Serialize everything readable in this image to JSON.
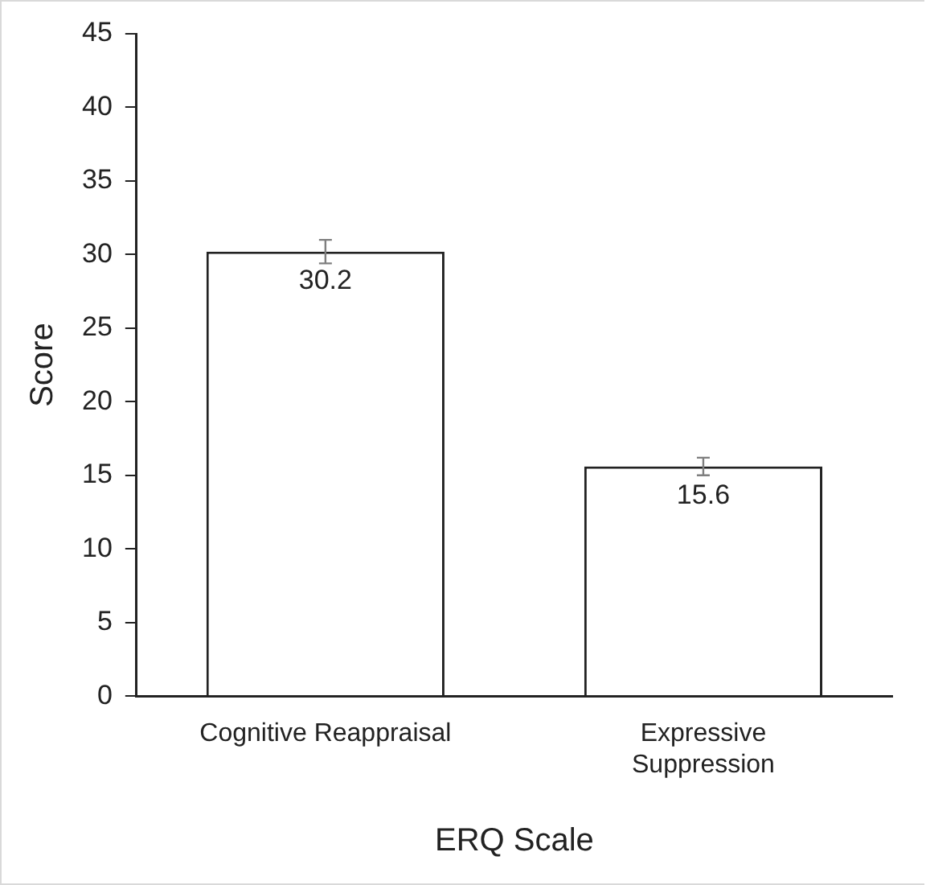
{
  "chart_data": {
    "type": "bar",
    "xlabel": "ERQ Scale",
    "ylabel": "Score",
    "categories": [
      "Cognitive Reappraisal",
      "Expressive Suppression"
    ],
    "values": [
      30.2,
      15.6
    ],
    "errors": [
      0.8,
      0.6
    ],
    "color": "#ffffff",
    "ylim": [
      0,
      45
    ],
    "yticks": [
      0,
      5,
      10,
      15,
      20,
      25,
      30,
      35,
      40,
      45
    ],
    "grid": false,
    "legend": false,
    "data_labels": true
  }
}
